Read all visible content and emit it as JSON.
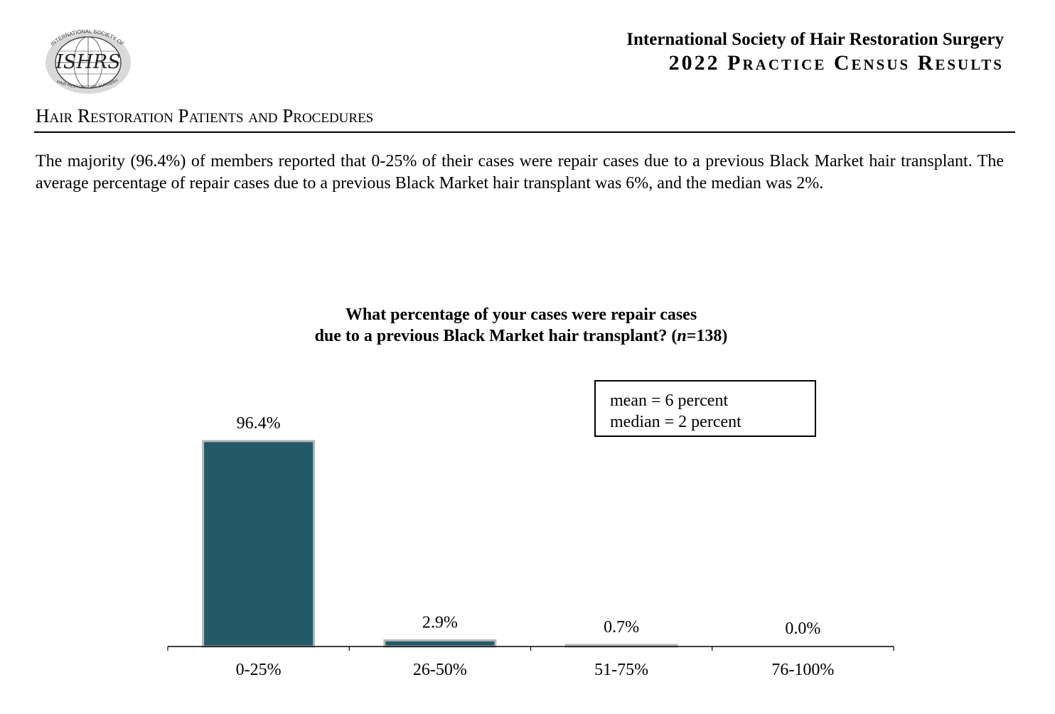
{
  "header": {
    "logo_arc_top": "INTERNATIONAL SOCIETY OF",
    "logo_monogram": "ISHRS",
    "logo_arc_bottom": "HAIR RESTORATION SURGERY",
    "organization": "International Society of Hair Restoration Surgery",
    "report_title": "2022 Practice Census Results"
  },
  "section": {
    "title": "Hair Restoration Patients and Procedures"
  },
  "summary": "The majority (96.4%) of members reported that 0-25% of their cases were repair cases due to a previous Black Market hair transplant. The average percentage of repair cases due to a previous Black Market hair transplant was 6%, and the median was 2%.",
  "stats": {
    "mean": "mean = 6 percent",
    "median": "median = 2 percent"
  },
  "chart_data": {
    "type": "bar",
    "title_line1": "What percentage of your cases were repair cases",
    "title_line2_prefix": "due to a previous Black Market hair transplant? (",
    "title_line2_n": "n",
    "title_line2_suffix": "=138)",
    "categories": [
      "0-25%",
      "26-50%",
      "51-75%",
      "76-100%"
    ],
    "values": [
      96.4,
      2.9,
      0.7,
      0.0
    ],
    "value_labels": [
      "96.4%",
      "2.9%",
      "0.7%",
      "0.0%"
    ],
    "ylim": [
      0,
      100
    ],
    "bar_color": "#245968",
    "bar_edge_color": "#b4b8ba",
    "grid": false,
    "legend": "none"
  }
}
